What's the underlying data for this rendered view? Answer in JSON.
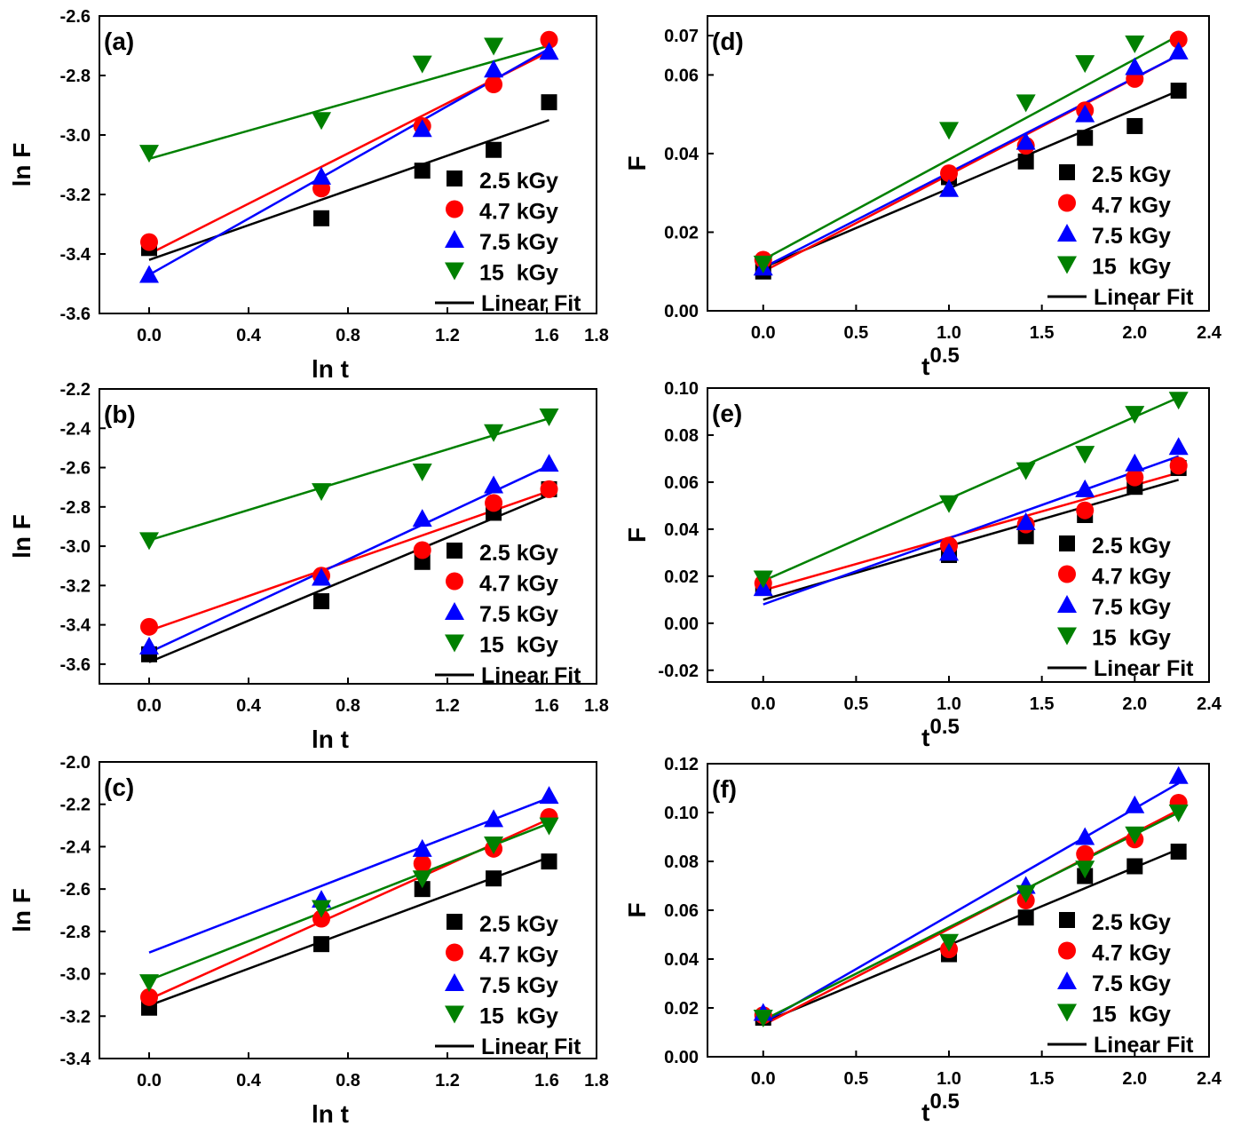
{
  "colors": {
    "2.5 kGy": "#000000",
    "4.7 kGy": "#ff0000",
    "7.5 kGy": "#0000ff",
    "15 kGy": "#008000"
  },
  "legend": {
    "entries": [
      "2.5 kGy",
      "4.7 kGy",
      "7.5 kGy",
      "15  kGy",
      "Linear Fit"
    ]
  },
  "chart_data": [
    {
      "panel": "(a)",
      "type": "scatter",
      "xlabel": "ln t",
      "ylabel": "ln F",
      "xlim": [
        -0.2,
        1.8
      ],
      "ylim": [
        -3.6,
        -2.6
      ],
      "xticks": [
        "0.0",
        "0.4",
        "0.8",
        "1.2",
        "1.6",
        "1.8"
      ],
      "yticks": [
        "-3.6",
        "-3.4",
        "-3.2",
        "-3.0",
        "-2.8",
        "-2.6"
      ],
      "x": [
        0,
        0.693,
        1.099,
        1.386,
        1.609
      ],
      "series": [
        {
          "name": "2.5 kGy",
          "marker": "square",
          "values": [
            -3.38,
            -3.28,
            -3.12,
            -3.05,
            -2.89
          ],
          "fit": [
            -3.42,
            -2.95
          ]
        },
        {
          "name": "4.7 kGy",
          "marker": "circle",
          "values": [
            -3.36,
            -3.18,
            -2.97,
            -2.83,
            -2.68
          ],
          "fit": [
            -3.4,
            -2.72
          ]
        },
        {
          "name": "7.5 kGy",
          "marker": "triangle-up",
          "values": [
            -3.47,
            -3.14,
            -2.98,
            -2.78,
            -2.72
          ],
          "fit": [
            -3.47,
            -2.71
          ]
        },
        {
          "name": "15  kGy",
          "marker": "triangle-down",
          "values": [
            -3.06,
            -2.95,
            -2.76,
            -2.7,
            null
          ],
          "fit": [
            -3.08,
            -2.7
          ]
        }
      ]
    },
    {
      "panel": "(b)",
      "type": "scatter",
      "xlabel": "ln t",
      "ylabel": "ln F",
      "xlim": [
        -0.2,
        1.8
      ],
      "ylim": [
        -3.7,
        -2.2
      ],
      "xticks": [
        "0.0",
        "0.4",
        "0.8",
        "1.2",
        "1.6",
        "1.8"
      ],
      "yticks": [
        "-3.6",
        "-3.4",
        "-3.2",
        "-3.0",
        "-2.8",
        "-2.6",
        "-2.4",
        "-2.2"
      ],
      "x": [
        0,
        0.693,
        1.099,
        1.386,
        1.609
      ],
      "series": [
        {
          "name": "2.5 kGy",
          "marker": "square",
          "values": [
            -3.55,
            -3.28,
            -3.08,
            -2.83,
            -2.71
          ],
          "fit": [
            -3.59,
            -2.74
          ]
        },
        {
          "name": "4.7 kGy",
          "marker": "circle",
          "values": [
            -3.41,
            -3.15,
            -3.02,
            -2.78,
            -2.71
          ],
          "fit": [
            -3.43,
            -2.72
          ]
        },
        {
          "name": "7.5 kGy",
          "marker": "triangle-up",
          "values": [
            -3.51,
            -3.16,
            -2.86,
            -2.69,
            -2.58
          ],
          "fit": [
            -3.54,
            -2.59
          ]
        },
        {
          "name": "15  kGy",
          "marker": "triangle-down",
          "values": [
            -2.97,
            -2.72,
            -2.62,
            -2.42,
            -2.34
          ],
          "fit": [
            -2.97,
            -2.35
          ]
        }
      ]
    },
    {
      "panel": "(c)",
      "type": "scatter",
      "xlabel": "ln t",
      "ylabel": "ln F",
      "xlim": [
        -0.2,
        1.8
      ],
      "ylim": [
        -3.4,
        -2.0
      ],
      "xticks": [
        "0.0",
        "0.4",
        "0.8",
        "1.2",
        "1.6",
        "1.8"
      ],
      "yticks": [
        "-3.4",
        "-3.2",
        "-3.0",
        "-2.8",
        "-2.6",
        "-2.4",
        "-2.2",
        "-2.0"
      ],
      "x": [
        0,
        0.693,
        1.099,
        1.386,
        1.609
      ],
      "series": [
        {
          "name": "2.5 kGy",
          "marker": "square",
          "values": [
            -3.16,
            -2.86,
            -2.6,
            -2.55,
            -2.47
          ],
          "fit": [
            -3.15,
            -2.45
          ]
        },
        {
          "name": "4.7 kGy",
          "marker": "circle",
          "values": [
            -3.11,
            -2.74,
            -2.48,
            -2.41,
            -2.26
          ],
          "fit": [
            -3.12,
            -2.27
          ]
        },
        {
          "name": "7.5 kGy",
          "marker": "triangle-up",
          "values": [
            null,
            -2.65,
            -2.41,
            -2.27,
            -2.16
          ],
          "fit": [
            -2.9,
            -2.17
          ]
        },
        {
          "name": "15  kGy",
          "marker": "triangle-down",
          "values": [
            -3.04,
            -2.69,
            -2.55,
            -2.39,
            -2.3
          ],
          "fit": [
            -3.03,
            -2.29
          ]
        }
      ]
    },
    {
      "panel": "(d)",
      "type": "scatter",
      "xlabel": "t",
      "xlabel_sup": "0.5",
      "ylabel": "F",
      "xlim": [
        -0.3,
        2.4
      ],
      "ylim": [
        0.0,
        0.075
      ],
      "xticks": [
        "0.0",
        "0.5",
        "1.0",
        "1.5",
        "2.0",
        "2.4"
      ],
      "yticks": [
        "0.00",
        "0.02",
        "0.04",
        "0.06",
        "0.07"
      ],
      "x": [
        0,
        1,
        1.414,
        1.732,
        2,
        2.236
      ],
      "series": [
        {
          "name": "2.5 kGy",
          "marker": "square",
          "values": [
            0.01,
            0.034,
            0.038,
            0.044,
            0.047,
            0.056
          ],
          "fit": [
            0.011,
            0.056
          ]
        },
        {
          "name": "4.7 kGy",
          "marker": "circle",
          "values": [
            0.013,
            0.035,
            0.042,
            0.051,
            0.059,
            0.069
          ],
          "fit": [
            0.01,
            0.065
          ]
        },
        {
          "name": "7.5 kGy",
          "marker": "triangle-up",
          "values": [
            0.011,
            0.031,
            0.043,
            0.05,
            0.062,
            0.066
          ],
          "fit": [
            0.011,
            0.065
          ]
        },
        {
          "name": "15  kGy",
          "marker": "triangle-down",
          "values": [
            0.012,
            0.046,
            0.053,
            0.063,
            0.068,
            null
          ],
          "fit": [
            0.013,
            0.07
          ]
        }
      ]
    },
    {
      "panel": "(e)",
      "type": "scatter",
      "xlabel": "t",
      "xlabel_sup": "0.5",
      "ylabel": "F",
      "xlim": [
        -0.3,
        2.4
      ],
      "ylim": [
        -0.025,
        0.1
      ],
      "xticks": [
        "0.0",
        "0.5",
        "1.0",
        "1.5",
        "2.0",
        "2.4"
      ],
      "yticks": [
        "-0.02",
        "0.00",
        "0.02",
        "0.04",
        "0.06",
        "0.08",
        "0.10"
      ],
      "x": [
        0,
        1,
        1.414,
        1.732,
        2,
        2.236
      ],
      "series": [
        {
          "name": "2.5 kGy",
          "marker": "square",
          "values": [
            0.015,
            0.029,
            0.037,
            0.046,
            0.058,
            0.066
          ],
          "fit": [
            0.01,
            0.061
          ]
        },
        {
          "name": "4.7 kGy",
          "marker": "circle",
          "values": [
            0.017,
            0.033,
            0.042,
            0.048,
            0.062,
            0.067
          ],
          "fit": [
            0.014,
            0.064
          ]
        },
        {
          "name": "7.5 kGy",
          "marker": "triangle-up",
          "values": [
            0.015,
            0.03,
            0.043,
            0.057,
            0.068,
            0.075
          ],
          "fit": [
            0.008,
            0.071
          ]
        },
        {
          "name": "15  kGy",
          "marker": "triangle-down",
          "values": [
            0.019,
            0.051,
            0.065,
            0.072,
            0.089,
            0.095
          ],
          "fit": [
            0.018,
            0.096
          ]
        }
      ]
    },
    {
      "panel": "(f)",
      "type": "scatter",
      "xlabel": "t",
      "xlabel_sup": "0.5",
      "ylabel": "F",
      "xlim": [
        -0.3,
        2.4
      ],
      "ylim": [
        0.0,
        0.12
      ],
      "xticks": [
        "0.0",
        "0.5",
        "1.0",
        "1.5",
        "2.0",
        "2.4"
      ],
      "yticks": [
        "0.00",
        "0.02",
        "0.04",
        "0.06",
        "0.08",
        "0.10",
        "0.12"
      ],
      "x": [
        0,
        1,
        1.414,
        1.732,
        2,
        2.236
      ],
      "series": [
        {
          "name": "2.5 kGy",
          "marker": "square",
          "values": [
            0.016,
            0.042,
            0.057,
            0.074,
            0.078,
            0.084
          ],
          "fit": [
            0.014,
            0.085
          ]
        },
        {
          "name": "4.7 kGy",
          "marker": "circle",
          "values": [
            0.017,
            0.044,
            0.064,
            0.083,
            0.089,
            0.104
          ],
          "fit": [
            0.013,
            0.101
          ]
        },
        {
          "name": "7.5 kGy",
          "marker": "triangle-up",
          "values": [
            0.018,
            null,
            0.07,
            0.09,
            0.103,
            0.115
          ],
          "fit": [
            0.014,
            0.112
          ]
        },
        {
          "name": "15  kGy",
          "marker": "triangle-down",
          "values": [
            0.016,
            0.047,
            0.067,
            0.077,
            0.091,
            0.1
          ],
          "fit": [
            0.015,
            0.1
          ]
        }
      ]
    }
  ]
}
